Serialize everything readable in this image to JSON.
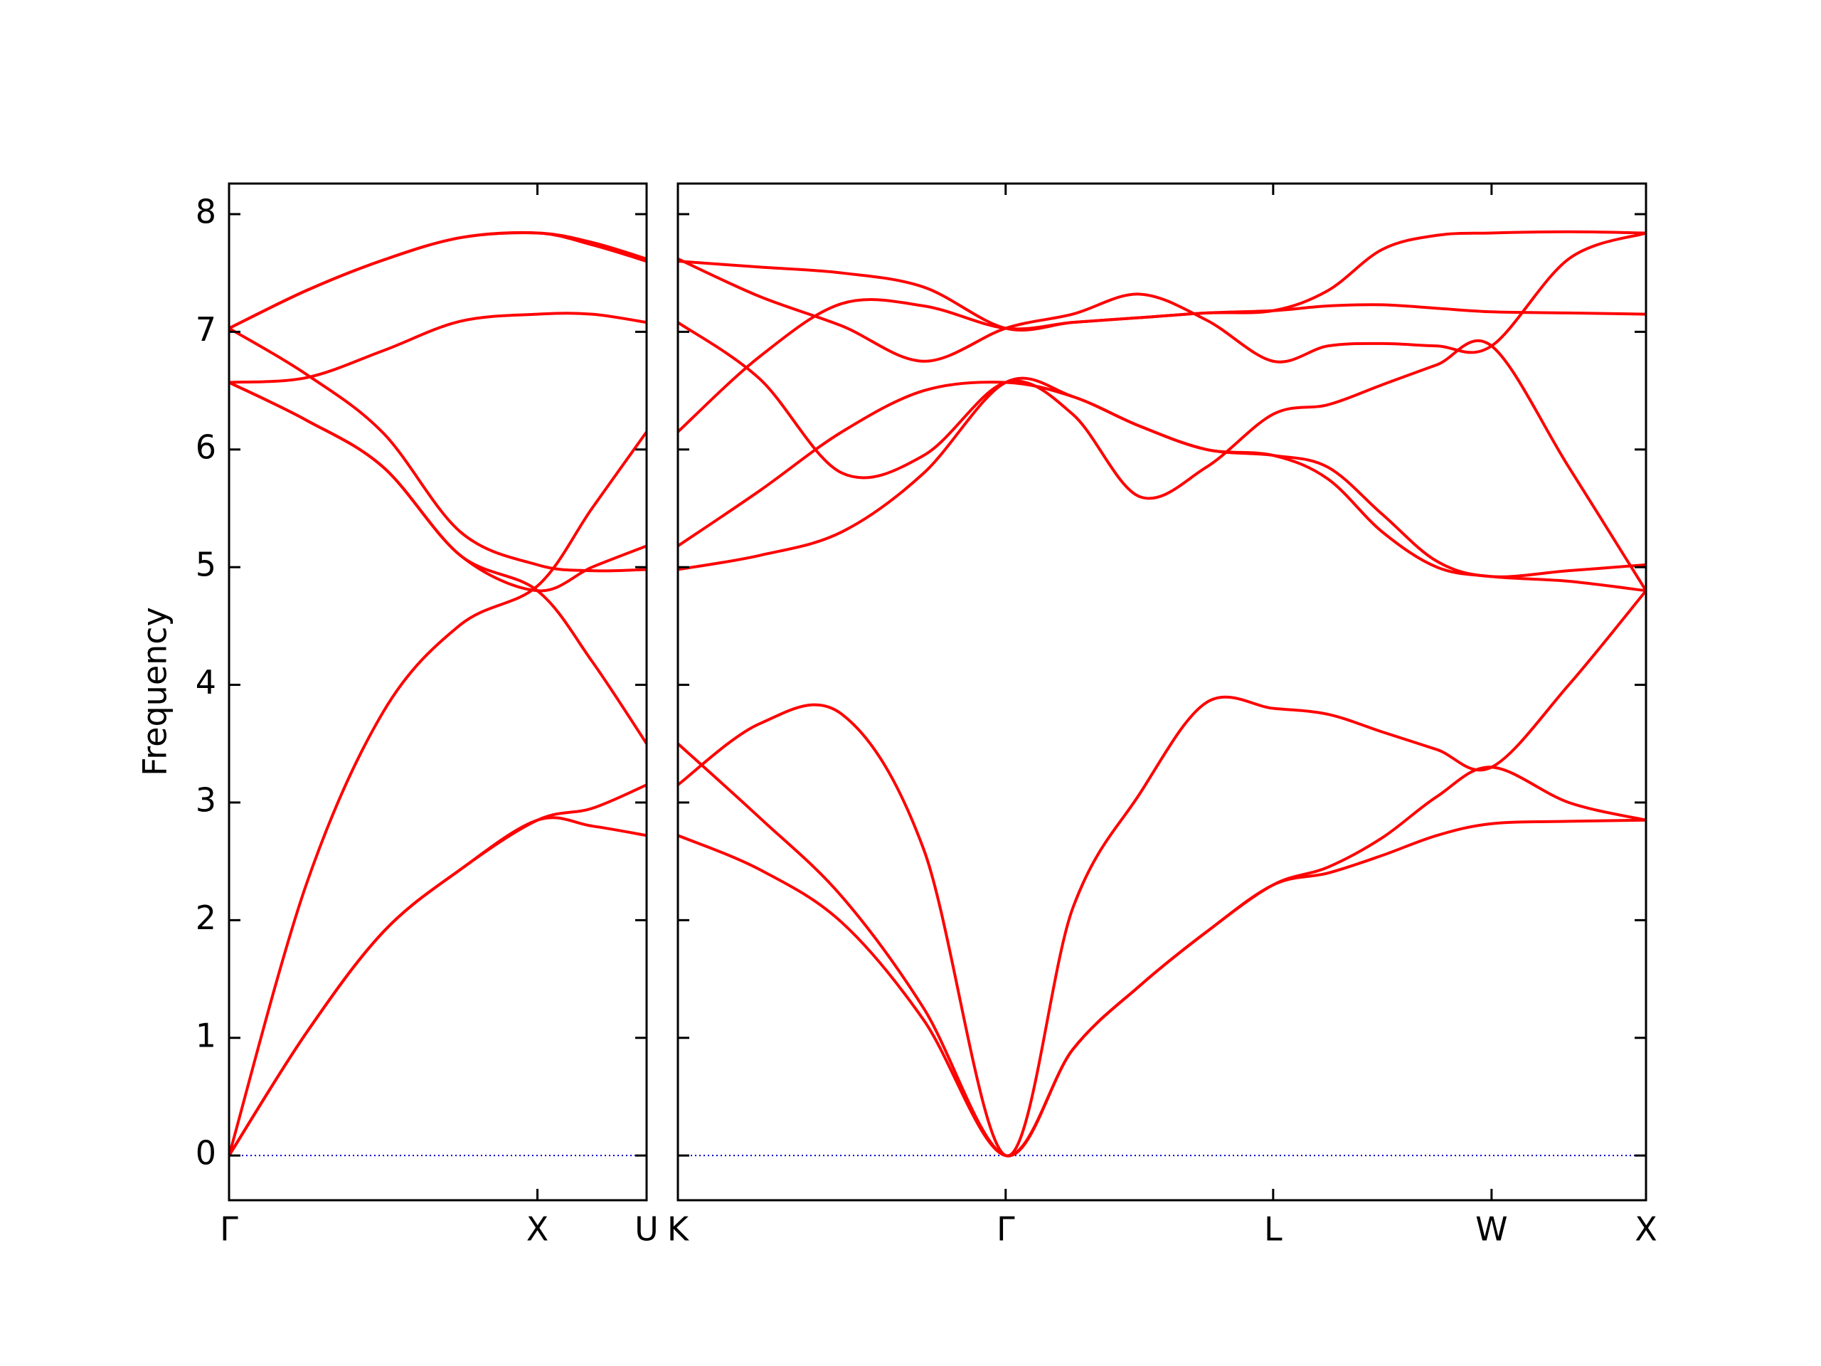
{
  "chart_data": [
    {
      "type": "line",
      "y_label": "Frequency",
      "x": [
        0,
        0.25,
        0.5,
        0.75,
        1,
        1.177,
        1.354
      ],
      "xlim": [
        0,
        1.354
      ],
      "xticks": [
        {
          "value": 0,
          "label": "Γ"
        },
        {
          "value": 1,
          "label": "X"
        },
        {
          "value": 1.354,
          "label": "U"
        }
      ],
      "ylim": [
        -0.38,
        8.26
      ],
      "yticks": [
        0,
        1,
        2,
        3,
        4,
        5,
        6,
        7,
        8
      ],
      "ytick_labels": true,
      "hline": {
        "value": 0,
        "color": "#0000cc"
      },
      "series": [
        {
          "color": "#ff0000",
          "values": [
            0,
            1.04,
            1.9,
            2.43,
            2.85,
            2.8,
            2.72
          ]
        },
        {
          "color": "#ff0000",
          "values": [
            0,
            1.04,
            1.9,
            2.43,
            2.85,
            2.95,
            3.15
          ]
        },
        {
          "color": "#ff0000",
          "values": [
            0,
            2.3,
            3.77,
            4.51,
            4.84,
            5.5,
            6.15
          ]
        },
        {
          "color": "#ff0000",
          "values": [
            6.57,
            6.25,
            5.85,
            5.1,
            4.8,
            4.2,
            3.5
          ]
        },
        {
          "color": "#ff0000",
          "values": [
            6.57,
            6.25,
            5.85,
            5.1,
            4.8,
            5.0,
            5.18
          ]
        },
        {
          "color": "#ff0000",
          "values": [
            6.57,
            6.61,
            6.84,
            7.09,
            7.15,
            7.15,
            7.08
          ]
        },
        {
          "color": "#ff0000",
          "values": [
            7.03,
            6.64,
            6.14,
            5.3,
            5.02,
            4.97,
            4.98
          ]
        },
        {
          "color": "#ff0000",
          "values": [
            7.03,
            7.35,
            7.61,
            7.8,
            7.84,
            7.74,
            7.6
          ]
        },
        {
          "color": "#ff0000",
          "values": [
            7.03,
            7.35,
            7.61,
            7.8,
            7.84,
            7.76,
            7.62
          ]
        }
      ]
    },
    {
      "type": "line",
      "x": [
        1.354,
        1.619,
        1.885,
        2.15,
        2.415,
        2.632,
        2.848,
        3.065,
        3.281,
        3.458,
        3.634,
        3.811,
        3.988,
        4.238,
        4.488
      ],
      "xlim": [
        1.354,
        4.488
      ],
      "xticks": [
        {
          "value": 1.354,
          "label": "K"
        },
        {
          "value": 2.415,
          "label": "Γ"
        },
        {
          "value": 3.281,
          "label": "L"
        },
        {
          "value": 3.988,
          "label": "W"
        },
        {
          "value": 4.488,
          "label": "X"
        }
      ],
      "ylim": [
        -0.38,
        8.26
      ],
      "yticks": [
        0,
        1,
        2,
        3,
        4,
        5,
        6,
        7,
        8
      ],
      "ytick_labels": false,
      "hline": {
        "value": 0,
        "color": "#0000cc"
      },
      "series": [
        {
          "color": "#ff0000",
          "values": [
            2.72,
            2.43,
            1.98,
            1.15,
            0,
            0.9,
            1.44,
            1.9,
            2.3,
            2.4,
            2.55,
            2.72,
            2.82,
            2.84,
            2.85
          ]
        },
        {
          "color": "#ff0000",
          "values": [
            3.5,
            2.87,
            2.2,
            1.25,
            0,
            0.9,
            1.44,
            1.9,
            2.3,
            2.45,
            2.7,
            3.05,
            3.3,
            3.0,
            2.85
          ]
        },
        {
          "color": "#ff0000",
          "values": [
            3.15,
            3.67,
            3.75,
            2.6,
            0,
            2.1,
            3.07,
            3.85,
            3.8,
            3.75,
            3.6,
            3.45,
            3.3,
            4.0,
            4.8
          ]
        },
        {
          "color": "#ff0000",
          "values": [
            4.98,
            5.1,
            5.3,
            5.8,
            6.57,
            6.45,
            6.2,
            6.0,
            5.95,
            5.75,
            5.3,
            5.0,
            4.92,
            4.88,
            4.8
          ]
        },
        {
          "color": "#ff0000",
          "values": [
            5.18,
            5.65,
            6.15,
            6.5,
            6.57,
            6.45,
            6.2,
            6.0,
            5.95,
            5.85,
            5.45,
            5.05,
            4.92,
            4.97,
            5.02
          ]
        },
        {
          "color": "#ff0000",
          "values": [
            6.15,
            6.79,
            7.24,
            7.22,
            7.03,
            7.08,
            7.12,
            7.16,
            7.18,
            7.22,
            7.23,
            7.2,
            7.17,
            7.16,
            7.15
          ]
        },
        {
          "color": "#ff0000",
          "values": [
            7.08,
            6.6,
            5.8,
            5.95,
            6.57,
            6.3,
            5.6,
            5.85,
            6.3,
            6.38,
            6.55,
            6.72,
            6.88,
            5.85,
            4.8
          ]
        },
        {
          "color": "#ff0000",
          "values": [
            7.62,
            7.3,
            7.05,
            6.75,
            7.03,
            7.15,
            7.32,
            7.1,
            6.75,
            6.88,
            6.9,
            6.88,
            6.88,
            7.62,
            7.84
          ]
        },
        {
          "color": "#ff0000",
          "values": [
            7.6,
            7.55,
            7.5,
            7.38,
            7.03,
            7.08,
            7.12,
            7.16,
            7.18,
            7.35,
            7.7,
            7.82,
            7.84,
            7.85,
            7.84
          ]
        }
      ]
    }
  ]
}
